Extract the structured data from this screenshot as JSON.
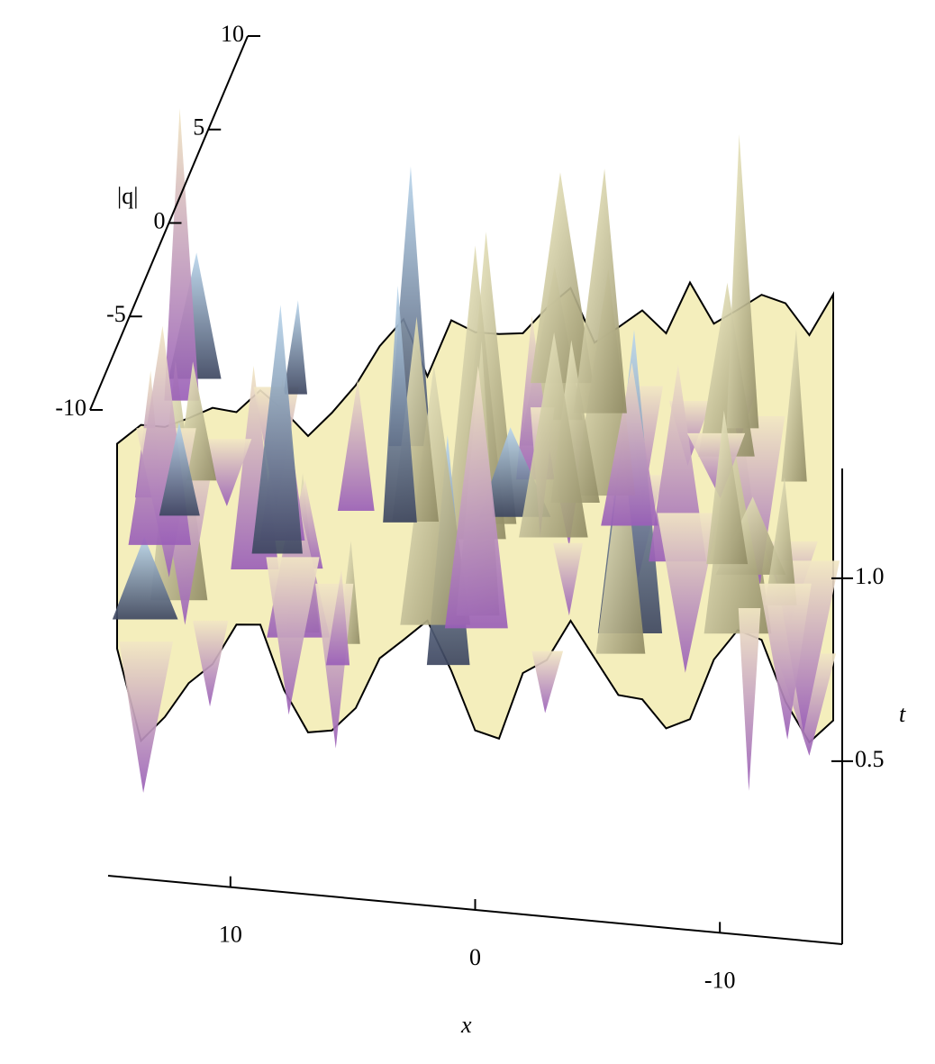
{
  "chart_data": {
    "type": "surface",
    "xlabel": "x",
    "ylabel": "t",
    "zlabel": "|q|",
    "xlim": [
      15,
      -15
    ],
    "xticks": [
      10,
      0,
      -10
    ],
    "ylim": [
      0,
      1.3
    ],
    "yticks": [
      0.5,
      {
        "value": 1.0,
        "label": "1.0"
      }
    ],
    "zlim": [
      -10,
      10
    ],
    "zticks": [
      -10,
      -5,
      0,
      5,
      10
    ],
    "color": "#f4eebc"
  }
}
